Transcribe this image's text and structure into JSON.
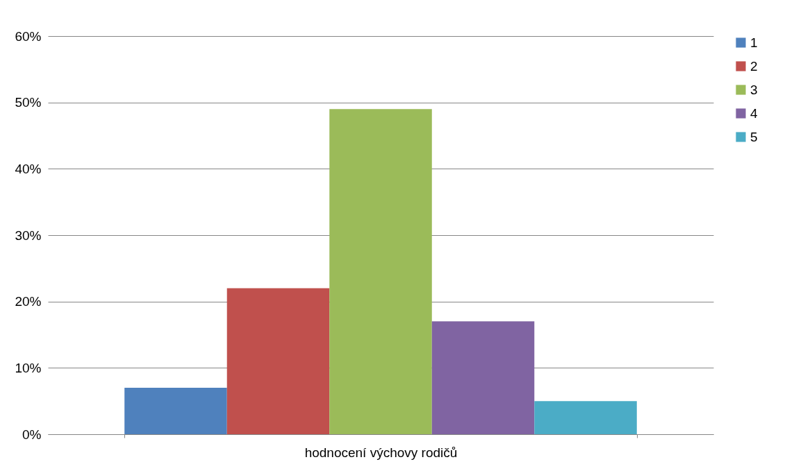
{
  "chart_data": {
    "type": "bar",
    "categories": [
      "hodnocení výchovy rodičů"
    ],
    "series": [
      {
        "name": "1",
        "color": "#4f81bd",
        "values": [
          7
        ]
      },
      {
        "name": "2",
        "color": "#c0504d",
        "values": [
          22
        ]
      },
      {
        "name": "3",
        "color": "#9bbb59",
        "values": [
          49
        ]
      },
      {
        "name": "4",
        "color": "#8064a2",
        "values": [
          17
        ]
      },
      {
        "name": "5",
        "color": "#4bacc6",
        "values": [
          5
        ]
      }
    ],
    "ylim": [
      0,
      60
    ],
    "yticks": [
      {
        "value": 0,
        "label": "0%"
      },
      {
        "value": 10,
        "label": "10%"
      },
      {
        "value": 20,
        "label": "20%"
      },
      {
        "value": 30,
        "label": "30%"
      },
      {
        "value": 40,
        "label": "40%"
      },
      {
        "value": 50,
        "label": "50%"
      },
      {
        "value": 60,
        "label": "60%"
      }
    ],
    "grid": "y",
    "legend": "right"
  }
}
